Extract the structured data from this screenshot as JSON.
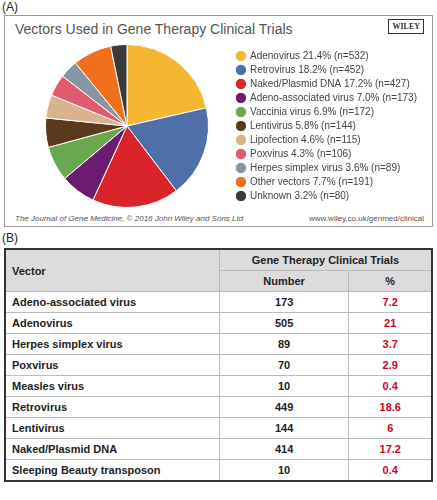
{
  "panel_labels": [
    "(A)",
    "(B)"
  ],
  "chart_data": {
    "type": "pie",
    "title": "Vectors Used in Gene Therapy Clinical Trials",
    "categories": [
      "Adenovirus 21.4% (n=532)",
      "Retrovirus 18.2% (n=452)",
      "Naked/Plasmid DNA 17.2% (n=427)",
      "Adeno-associated virus 7.0% (n=173)",
      "Vaccinia virus 6.9% (n=172)",
      "Lentivirus 5.8% (n=144)",
      "Lipofection 4.6% (n=115)",
      "Poxvirus 4.3% (n=106)",
      "Herpes simplex virus 3.6% (n=89)",
      "Other vectors 7.7% (n=191)",
      "Unknown 3.2% (n=80)"
    ],
    "values": [
      21.4,
      18.2,
      17.2,
      7.0,
      6.9,
      5.8,
      4.6,
      4.3,
      3.6,
      7.7,
      3.2
    ],
    "colors": [
      "#f5b731",
      "#4f6fa8",
      "#d9252a",
      "#6b1c6e",
      "#6aa84f",
      "#5a3a1a",
      "#d9b38c",
      "#e05a70",
      "#8796a5",
      "#f07020",
      "#3a3a3a"
    ],
    "legend": "right",
    "annotations": [
      "WILEY",
      "The Journal of Gene Medicine, © 2016 John Wiley and Sons Ltd",
      "www.wiley.co.uk/genmed/clinical"
    ]
  },
  "table": {
    "header": [
      "Vector",
      "Gene Therapy Clinical Trials"
    ],
    "subheader": [
      "Number",
      "%"
    ],
    "rows": [
      [
        "Adeno-associated virus",
        173,
        7.2
      ],
      [
        "Adenovirus",
        505,
        21
      ],
      [
        "Herpes simplex virus",
        89,
        3.7
      ],
      [
        "Poxvirus",
        70,
        2.9
      ],
      [
        "Measles virus",
        10,
        0.4
      ],
      [
        "Retrovirus",
        449,
        18.6
      ],
      [
        "Lentivirus",
        144,
        6
      ],
      [
        "Naked/Plasmid DNA",
        414,
        17.2
      ],
      [
        "Sleeping Beauty transposon",
        10,
        0.4
      ]
    ]
  }
}
